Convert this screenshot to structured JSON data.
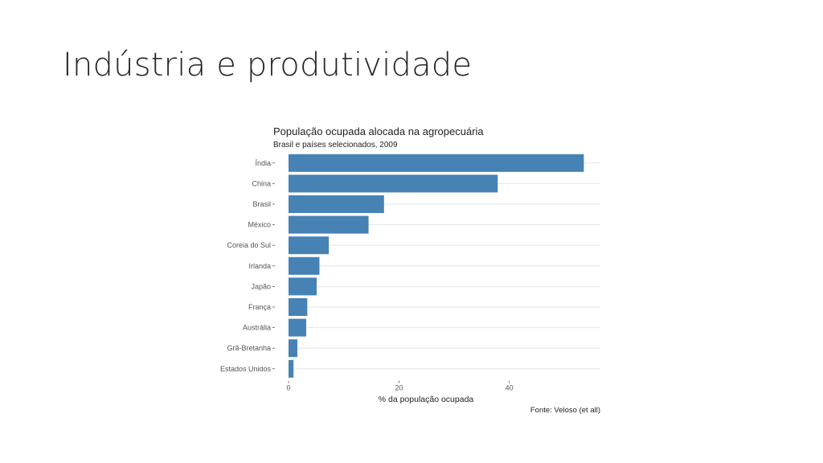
{
  "slide": {
    "title": "Indústria e produtividade"
  },
  "chart_data": {
    "type": "bar",
    "orientation": "horizontal",
    "title": "População ocupada alocada na agropecuária",
    "subtitle": "Brasil e países selecionados, 2009",
    "xlabel": "% da população ocupada",
    "ylabel": "",
    "caption": "Fonte: Veloso (et all)",
    "categories": [
      "Índia",
      "China",
      "Brasil",
      "México",
      "Coreia do Sul",
      "Irlanda",
      "Japão",
      "França",
      "Austrália",
      "Grã-Bretanha",
      "Estados Unidos"
    ],
    "values": [
      53.5,
      37.9,
      17.3,
      14.5,
      7.3,
      5.6,
      5.1,
      3.4,
      3.2,
      1.6,
      0.9
    ],
    "xticks": [
      0,
      20,
      40
    ],
    "xlim": [
      0,
      56.5
    ],
    "bar_color": "#4682b4",
    "grid": true,
    "legend": "none"
  }
}
